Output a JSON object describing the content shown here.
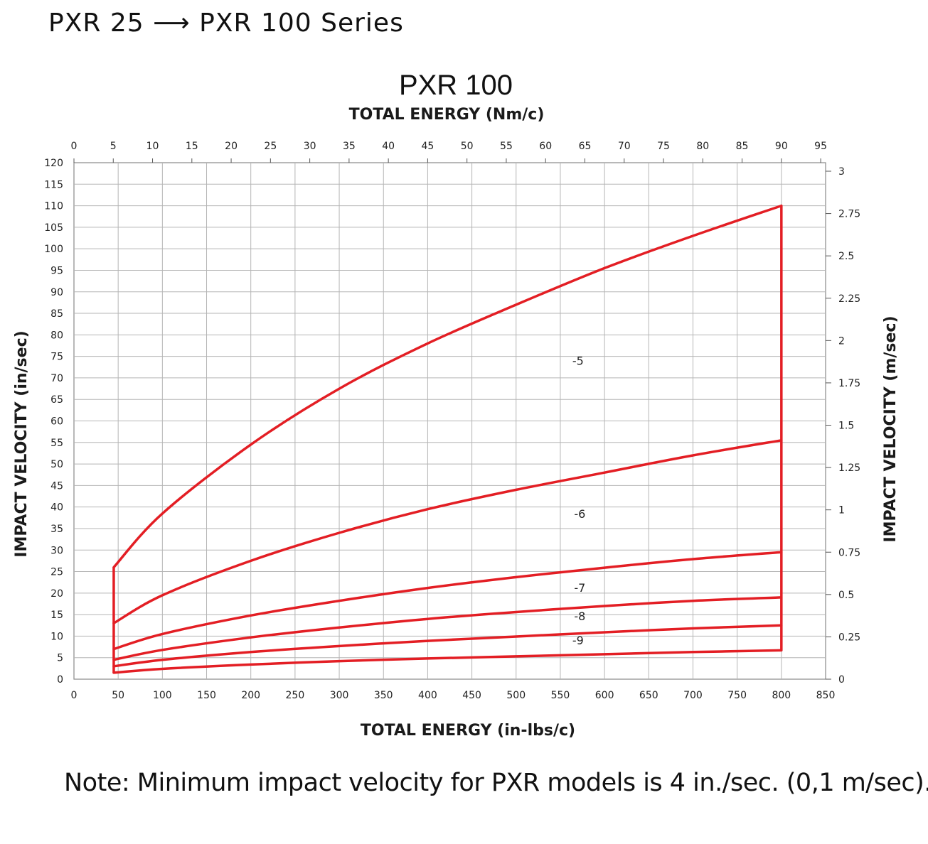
{
  "header": {
    "text": "PXR 25 ⟶ PXR 100 Series"
  },
  "note": {
    "text": "Note: Minimum impact velocity for PXR models is 4 in./sec. (0,1 m/sec)."
  },
  "colors": {
    "curve": "#e31e24",
    "grid": "#b5b5b5",
    "text": "#1a1a1a"
  },
  "chart_data": {
    "type": "line",
    "title": "PXR 100",
    "x_top_label": "TOTAL ENERGY (Nm/c)",
    "x_bottom_label": "TOTAL ENERGY (in-lbs/c)",
    "y_left_label": "IMPACT VELOCITY (in/sec)",
    "y_right_label": "IMPACT VELOCITY (m/sec)",
    "xlim": [
      0,
      850
    ],
    "ylim": [
      0,
      120
    ],
    "x_ticks": [
      0,
      50,
      100,
      150,
      200,
      250,
      300,
      350,
      400,
      450,
      500,
      550,
      600,
      650,
      700,
      750,
      800,
      850
    ],
    "y_ticks": [
      0,
      5,
      10,
      15,
      20,
      25,
      30,
      35,
      40,
      45,
      50,
      55,
      60,
      65,
      70,
      75,
      80,
      85,
      90,
      95,
      100,
      105,
      110,
      115,
      120
    ],
    "x_top_ticks": [
      0,
      5,
      10,
      15,
      20,
      25,
      30,
      35,
      40,
      45,
      50,
      55,
      60,
      65,
      70,
      75,
      80,
      85,
      90,
      95
    ],
    "y_right_ticks": [
      "0",
      "0.25",
      "0.5",
      "0.75",
      "1",
      "1.25",
      "1.5",
      "1.75",
      "2",
      "2.25",
      "2.5",
      "2.75",
      "3"
    ],
    "grid": true,
    "series": [
      {
        "name": "-5",
        "x": [
          45,
          100,
          200,
          300,
          400,
          500,
          600,
          700,
          800
        ],
        "y": [
          26,
          38.5,
          54.5,
          67.5,
          78,
          87,
          95.5,
          103,
          110
        ]
      },
      {
        "name": "-6",
        "x": [
          45,
          100,
          200,
          300,
          400,
          500,
          600,
          700,
          800
        ],
        "y": [
          13,
          19.5,
          27.5,
          34,
          39.5,
          44,
          48,
          52,
          55.5
        ]
      },
      {
        "name": "-7",
        "x": [
          45,
          100,
          200,
          300,
          400,
          500,
          600,
          700,
          800
        ],
        "y": [
          7,
          10.5,
          14.8,
          18.2,
          21.2,
          23.7,
          25.9,
          27.9,
          29.5
        ]
      },
      {
        "name": "-8",
        "x": [
          45,
          100,
          200,
          300,
          400,
          500,
          600,
          700,
          800
        ],
        "y": [
          4.5,
          6.8,
          9.7,
          12,
          14,
          15.6,
          17,
          18.2,
          19
        ]
      },
      {
        "name": "-9",
        "x": [
          45,
          100,
          200,
          300,
          400,
          500,
          600,
          700,
          800
        ],
        "y": [
          3,
          4.5,
          6.3,
          7.7,
          8.9,
          9.9,
          10.9,
          11.8,
          12.5
        ]
      },
      {
        "name": "",
        "x": [
          45,
          100,
          200,
          300,
          400,
          500,
          600,
          700,
          800
        ],
        "y": [
          1.5,
          2.4,
          3.4,
          4.2,
          4.8,
          5.3,
          5.8,
          6.3,
          6.7
        ]
      }
    ],
    "curve_labels": [
      {
        "text": "-5",
        "x": 570,
        "y": 73
      },
      {
        "text": "-6",
        "x": 572,
        "y": 37.5
      },
      {
        "text": "-7",
        "x": 572,
        "y": 20.3
      },
      {
        "text": "-8",
        "x": 572,
        "y": 13.7
      },
      {
        "text": "-9",
        "x": 570,
        "y": 8.1
      }
    ]
  }
}
